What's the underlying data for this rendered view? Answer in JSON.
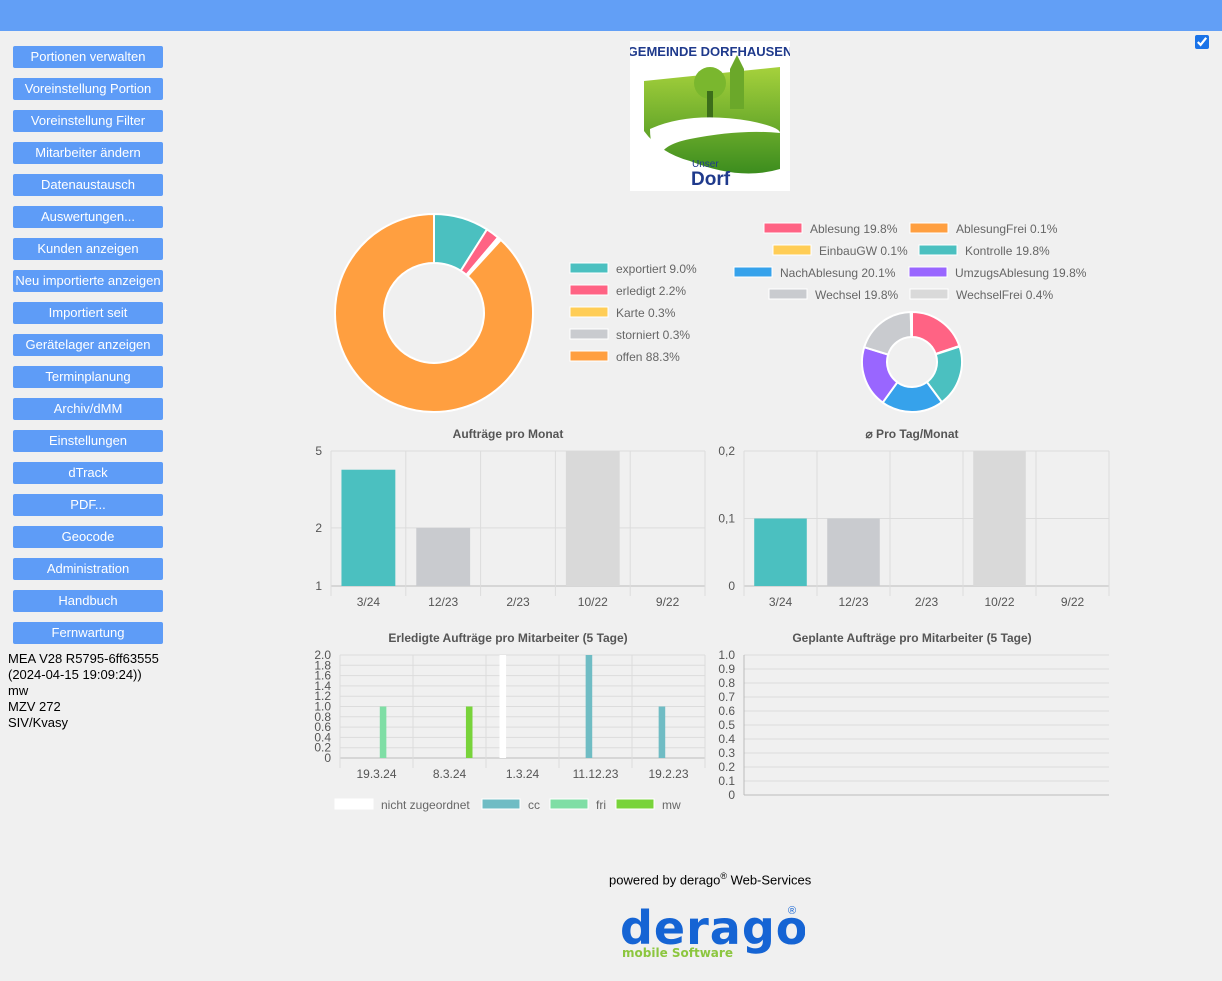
{
  "sidebar": {
    "items": [
      {
        "label": "Portionen verwalten"
      },
      {
        "label": "Voreinstellung Portion"
      },
      {
        "label": "Voreinstellung Filter"
      },
      {
        "label": "Mitarbeiter ändern"
      },
      {
        "label": "Datenaustausch"
      },
      {
        "label": "Auswertungen..."
      },
      {
        "label": "Kunden anzeigen"
      },
      {
        "label": "Neu importierte anzeigen"
      },
      {
        "label": "Importiert seit"
      },
      {
        "label": "Gerätelager anzeigen"
      },
      {
        "label": "Terminplanung"
      },
      {
        "label": "Archiv/dMM"
      },
      {
        "label": "Einstellungen"
      },
      {
        "label": "dTrack"
      },
      {
        "label": "PDF..."
      },
      {
        "label": "Geocode"
      },
      {
        "label": "Administration"
      },
      {
        "label": "Handbuch"
      },
      {
        "label": "Fernwartung"
      }
    ],
    "info": [
      "MEA V28 R5795-6ff63555",
      "(2024-04-15 19:09:24))",
      "mw",
      "MZV 272",
      "SIV/Kvasy"
    ]
  },
  "logo": {
    "line1": "GEMEINDE DORFHAUSEN",
    "unser": "Unser",
    "dorf": "Dorf"
  },
  "footer": {
    "prefix": "powered by derago",
    "reg": "®",
    "suffix": " Web-Services",
    "brand": "derago",
    "brand_reg": "®",
    "brand_sub": "mobile Software"
  },
  "chart_data": [
    {
      "type": "pie",
      "legend_position": "right",
      "slices": [
        {
          "label": "exportiert 9.0%",
          "value": 9.0,
          "color": "#4bc0c0"
        },
        {
          "label": "erledigt 2.2%",
          "value": 2.2,
          "color": "#ff6384"
        },
        {
          "label": "Karte 0.3%",
          "value": 0.3,
          "color": "#ffcd56"
        },
        {
          "label": "storniert 0.3%",
          "value": 0.3,
          "color": "#c9cbcf"
        },
        {
          "label": "offen 88.3%",
          "value": 88.3,
          "color": "#ff9f40"
        }
      ]
    },
    {
      "type": "pie",
      "legend_position": "top",
      "slices": [
        {
          "label": "Ablesung 19.8%",
          "value": 19.8,
          "color": "#ff6384"
        },
        {
          "label": "AblesungFrei 0.1%",
          "value": 0.1,
          "color": "#ff9f40"
        },
        {
          "label": "EinbauGW 0.1%",
          "value": 0.1,
          "color": "#ffcd56"
        },
        {
          "label": "Kontrolle 19.8%",
          "value": 19.8,
          "color": "#4bc0c0"
        },
        {
          "label": "NachAblesung 20.1%",
          "value": 20.1,
          "color": "#36a2eb"
        },
        {
          "label": "UmzugsAblesung 19.8%",
          "value": 19.8,
          "color": "#9966ff"
        },
        {
          "label": "Wechsel 19.8%",
          "value": 19.8,
          "color": "#c9cbcf"
        },
        {
          "label": "WechselFrei 0.4%",
          "value": 0.4,
          "color": "#d9d9d9"
        }
      ]
    },
    {
      "type": "bar",
      "title": "Aufträge pro Monat",
      "categories": [
        "3/24",
        "12/23",
        "2/23",
        "10/22",
        "9/22"
      ],
      "values": [
        4,
        2,
        1,
        5,
        1
      ],
      "colors": [
        "#4bc0c0",
        "#c9cbcf",
        "#c9cbcf",
        "#d9d9d9",
        "#c9cbcf"
      ],
      "yscale": "log",
      "ylim": [
        1,
        5
      ],
      "yticks": [
        "1",
        "2",
        "5"
      ],
      "grid": true
    },
    {
      "type": "bar",
      "title": "⌀ Pro Tag/Monat",
      "categories": [
        "3/24",
        "12/23",
        "2/23",
        "10/22",
        "9/22"
      ],
      "values": [
        0.1,
        0.1,
        0.0,
        0.2,
        0.0
      ],
      "colors": [
        "#4bc0c0",
        "#c9cbcf",
        "#c9cbcf",
        "#d9d9d9",
        "#c9cbcf"
      ],
      "ylim": [
        0,
        0.2
      ],
      "yticks": [
        "0",
        "0,1",
        "0,2"
      ],
      "grid": true
    },
    {
      "type": "bar",
      "title": "Erledigte Aufträge pro Mitarbeiter (5 Tage)",
      "categories": [
        "19.3.24",
        "8.3.24",
        "1.3.24",
        "11.12.23",
        "19.2.23"
      ],
      "ylim": [
        0,
        2.0
      ],
      "yticks": [
        "0",
        "0.2",
        "0.4",
        "0.6",
        "0.8",
        "1.0",
        "1.2",
        "1.4",
        "1.6",
        "1.8",
        "2.0"
      ],
      "legend_position": "bottom",
      "grid": true,
      "series": [
        {
          "name": "nicht zugeordnet",
          "color": "#ffffff",
          "values": [
            0,
            0,
            2,
            0,
            0
          ]
        },
        {
          "name": "cc",
          "color": "#6fbcc4",
          "values": [
            0,
            0,
            0,
            2,
            1
          ]
        },
        {
          "name": "fri",
          "color": "#7fdea5",
          "values": [
            1,
            0,
            0,
            0,
            0
          ]
        },
        {
          "name": "mw",
          "color": "#78d33a",
          "values": [
            0,
            1,
            0,
            0,
            0
          ]
        }
      ]
    },
    {
      "type": "bar",
      "title": "Geplante Aufträge pro Mitarbeiter (5 Tage)",
      "categories": [],
      "values": [],
      "ylim": [
        0,
        1.0
      ],
      "yticks": [
        "0",
        "0.1",
        "0.2",
        "0.3",
        "0.4",
        "0.5",
        "0.6",
        "0.7",
        "0.8",
        "0.9",
        "1.0"
      ],
      "grid": true
    }
  ]
}
